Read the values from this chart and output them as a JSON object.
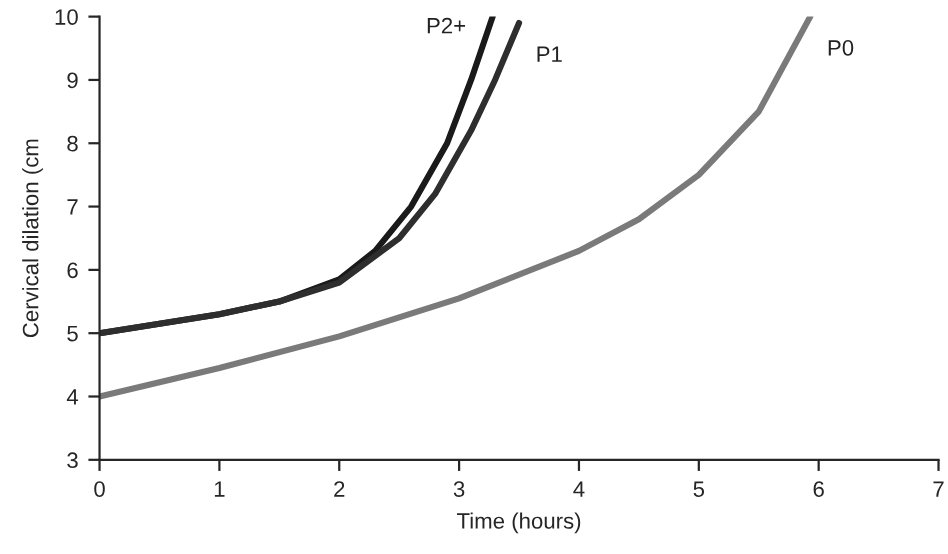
{
  "chart_data": {
    "type": "line",
    "xlabel": "Time (hours)",
    "ylabel": "Cervical dilation (cm",
    "xlim": [
      0,
      7
    ],
    "ylim": [
      3,
      10
    ],
    "xticks": [
      0,
      1,
      2,
      3,
      4,
      5,
      6,
      7
    ],
    "yticks": [
      3,
      4,
      5,
      6,
      7,
      8,
      9,
      10
    ],
    "grid": false,
    "legend": false,
    "marker": "none",
    "line_style": "solid",
    "series": [
      {
        "name": "P2+",
        "color": "#1a1a1a",
        "x": [
          0,
          0.5,
          1,
          1.5,
          2,
          2.3,
          2.6,
          2.9,
          3.1,
          3.28
        ],
        "values": [
          5,
          5.15,
          5.3,
          5.5,
          5.85,
          6.3,
          7,
          8,
          9,
          10
        ]
      },
      {
        "name": "P1",
        "color": "#2e2e2e",
        "x": [
          0,
          0.5,
          1,
          1.5,
          2,
          2.5,
          2.8,
          3.1,
          3.3,
          3.5
        ],
        "values": [
          5,
          5.15,
          5.3,
          5.5,
          5.8,
          6.5,
          7.2,
          8.2,
          9,
          9.9
        ]
      },
      {
        "name": "P0",
        "color": "#7a7a7a",
        "x": [
          0,
          1,
          2,
          3,
          4,
          4.5,
          5,
          5.5,
          5.93
        ],
        "values": [
          4,
          4.45,
          4.95,
          5.55,
          6.3,
          6.8,
          7.5,
          8.5,
          10
        ]
      }
    ]
  }
}
